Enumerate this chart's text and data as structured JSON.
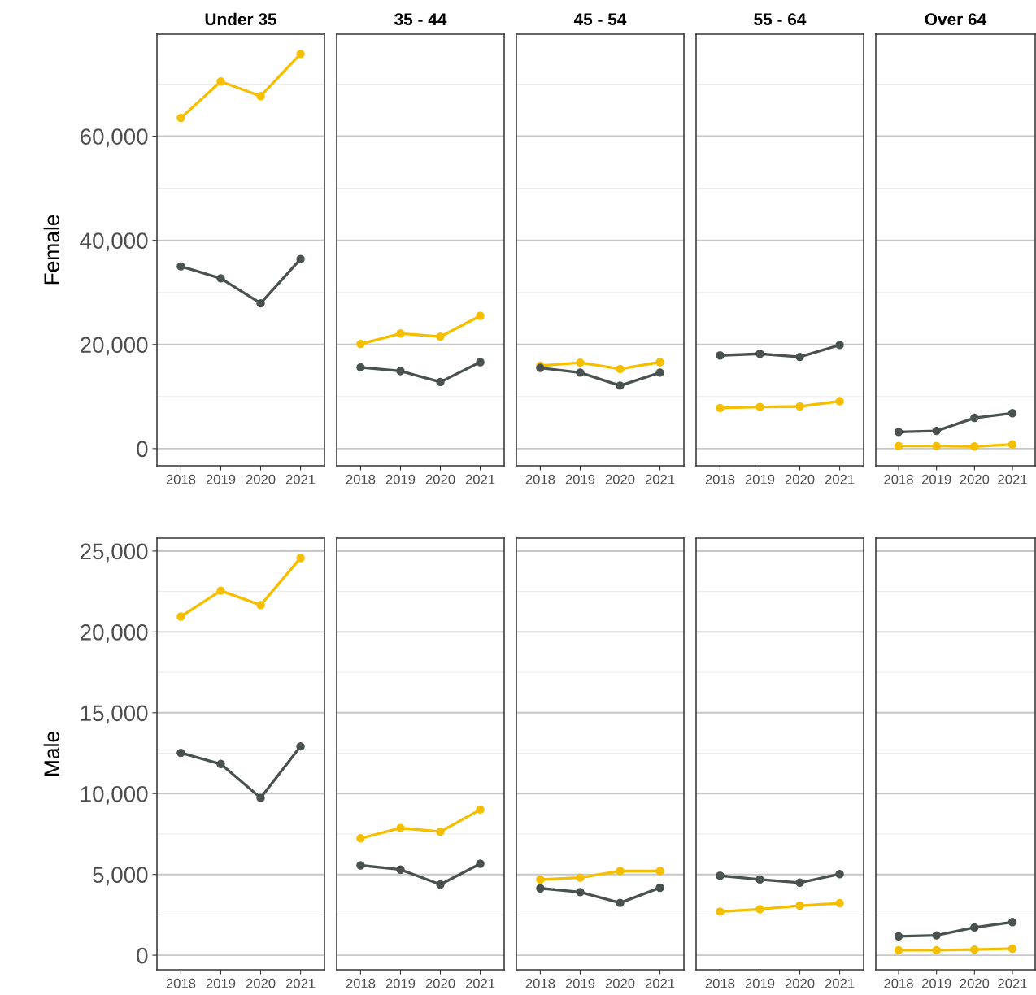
{
  "chart_data": [
    {
      "type": "line",
      "title": "Under 35",
      "ylabel": "Female",
      "categories": [
        "2018",
        "2019",
        "2020",
        "2021"
      ],
      "ylim": [
        -3300,
        79600
      ],
      "yticks": [
        0,
        {
          "value": 20000,
          "label": "20,000"
        },
        {
          "value": 40000,
          "label": "40,000"
        },
        {
          "value": 60000,
          "label": "60,000"
        }
      ],
      "grid": "y",
      "marker": "circle",
      "line_style": "solid",
      "series": [
        {
          "color": "#f5bf00",
          "values": [
            63500,
            70500,
            67700,
            75800
          ]
        },
        {
          "color": "#4a5250",
          "values": [
            35000,
            32700,
            27900,
            36400
          ]
        }
      ]
    },
    {
      "type": "line",
      "title": "35 - 44",
      "categories": [
        "2018",
        "2019",
        "2020",
        "2021"
      ],
      "ylim": [
        -3300,
        79600
      ],
      "yticks": [
        0,
        20000,
        40000,
        60000
      ],
      "tick_labels": "x",
      "grid": "y",
      "marker": "circle",
      "line_style": "solid",
      "series": [
        {
          "color": "#f5bf00",
          "values": [
            20100,
            22100,
            21500,
            25500
          ]
        },
        {
          "color": "#4a5250",
          "values": [
            15600,
            14900,
            12800,
            16600
          ]
        }
      ]
    },
    {
      "type": "line",
      "title": "45 - 54",
      "categories": [
        "2018",
        "2019",
        "2020",
        "2021"
      ],
      "ylim": [
        -3300,
        79600
      ],
      "yticks": [
        0,
        20000,
        40000,
        60000
      ],
      "tick_labels": "x",
      "grid": "y",
      "marker": "circle",
      "line_style": "solid",
      "series": [
        {
          "color": "#f5bf00",
          "values": [
            15900,
            16500,
            15300,
            16600
          ]
        },
        {
          "color": "#4a5250",
          "values": [
            15500,
            14600,
            12100,
            14600
          ]
        }
      ]
    },
    {
      "type": "line",
      "title": "55 - 64",
      "categories": [
        "2018",
        "2019",
        "2020",
        "2021"
      ],
      "ylim": [
        -3300,
        79600
      ],
      "yticks": [
        0,
        20000,
        40000,
        60000
      ],
      "tick_labels": "x",
      "grid": "y",
      "marker": "circle",
      "line_style": "solid",
      "series": [
        {
          "color": "#f5bf00",
          "values": [
            7800,
            8000,
            8100,
            9100
          ]
        },
        {
          "color": "#4a5250",
          "values": [
            17900,
            18200,
            17600,
            19900
          ]
        }
      ]
    },
    {
      "type": "line",
      "title": "Over 64",
      "categories": [
        "2018",
        "2019",
        "2020",
        "2021"
      ],
      "ylim": [
        -3300,
        79600
      ],
      "yticks": [
        0,
        20000,
        40000,
        60000
      ],
      "tick_labels": "x",
      "grid": "y",
      "marker": "circle",
      "line_style": "solid",
      "series": [
        {
          "color": "#f5bf00",
          "values": [
            500,
            500,
            400,
            800
          ]
        },
        {
          "color": "#4a5250",
          "values": [
            3200,
            3400,
            5900,
            6800
          ]
        }
      ]
    },
    {
      "type": "line",
      "ylabel": "Male",
      "categories": [
        "2018",
        "2019",
        "2020",
        "2021"
      ],
      "ylim": [
        -900,
        25800
      ],
      "yticks": [
        0,
        {
          "value": 5000,
          "label": "5,000"
        },
        {
          "value": 10000,
          "label": "10,000"
        },
        {
          "value": 15000,
          "label": "15,000"
        },
        {
          "value": 20000,
          "label": "20,000"
        },
        {
          "value": 25000,
          "label": "25,000"
        }
      ],
      "grid": "y",
      "marker": "circle",
      "line_style": "solid",
      "series": [
        {
          "color": "#f5bf00",
          "values": [
            20950,
            22550,
            21660,
            24570
          ]
        },
        {
          "color": "#4a5250",
          "values": [
            12520,
            11830,
            9730,
            12920
          ]
        }
      ]
    },
    {
      "type": "line",
      "categories": [
        "2018",
        "2019",
        "2020",
        "2021"
      ],
      "ylim": [
        -900,
        25800
      ],
      "yticks": [
        0,
        5000,
        10000,
        15000,
        20000,
        25000
      ],
      "tick_labels": "x",
      "grid": "y",
      "marker": "circle",
      "line_style": "solid",
      "series": [
        {
          "color": "#f5bf00",
          "values": [
            7230,
            7870,
            7640,
            9010
          ]
        },
        {
          "color": "#4a5250",
          "values": [
            5560,
            5300,
            4380,
            5660
          ]
        }
      ]
    },
    {
      "type": "line",
      "categories": [
        "2018",
        "2019",
        "2020",
        "2021"
      ],
      "ylim": [
        -900,
        25800
      ],
      "yticks": [
        0,
        5000,
        10000,
        15000,
        20000,
        25000
      ],
      "tick_labels": "x",
      "grid": "y",
      "marker": "circle",
      "line_style": "solid",
      "series": [
        {
          "color": "#f5bf00",
          "values": [
            4680,
            4800,
            5210,
            5210
          ]
        },
        {
          "color": "#4a5250",
          "values": [
            4140,
            3910,
            3240,
            4180
          ]
        }
      ]
    },
    {
      "type": "line",
      "categories": [
        "2018",
        "2019",
        "2020",
        "2021"
      ],
      "ylim": [
        -900,
        25800
      ],
      "yticks": [
        0,
        5000,
        10000,
        15000,
        20000,
        25000
      ],
      "tick_labels": "x",
      "grid": "y",
      "marker": "circle",
      "line_style": "solid",
      "series": [
        {
          "color": "#f5bf00",
          "values": [
            2700,
            2850,
            3070,
            3220
          ]
        },
        {
          "color": "#4a5250",
          "values": [
            4920,
            4690,
            4490,
            5020
          ]
        }
      ]
    },
    {
      "type": "line",
      "categories": [
        "2018",
        "2019",
        "2020",
        "2021"
      ],
      "ylim": [
        -900,
        25800
      ],
      "yticks": [
        0,
        5000,
        10000,
        15000,
        20000,
        25000
      ],
      "tick_labels": "x",
      "grid": "y",
      "marker": "circle",
      "line_style": "solid",
      "series": [
        {
          "color": "#f5bf00",
          "values": [
            310,
            310,
            350,
            410
          ]
        },
        {
          "color": "#4a5250",
          "values": [
            1170,
            1230,
            1720,
            2050
          ]
        }
      ]
    }
  ]
}
